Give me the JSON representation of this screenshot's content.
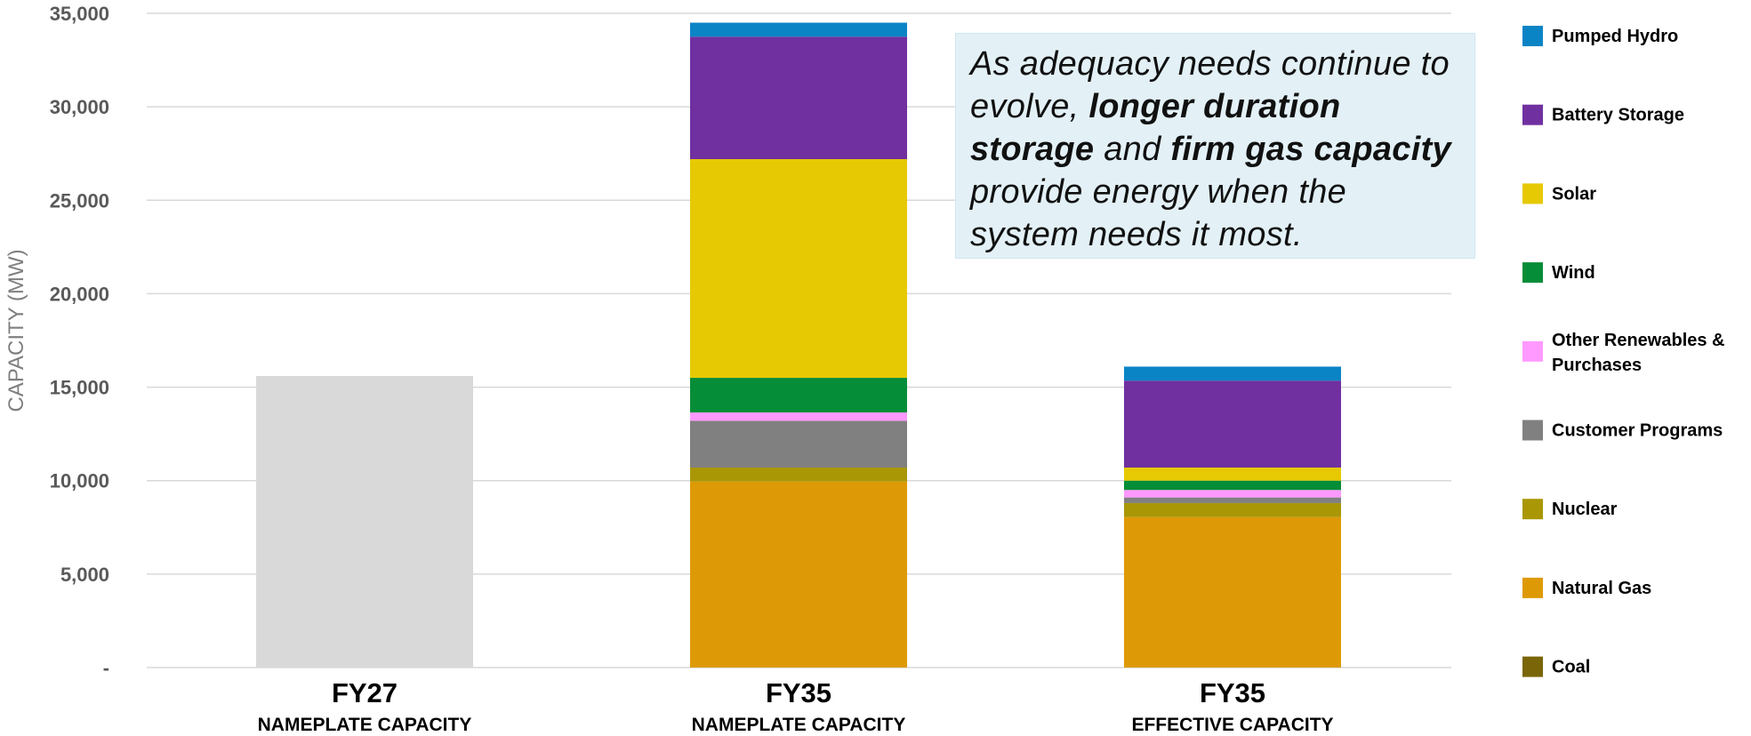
{
  "chart_data": {
    "type": "bar",
    "stacked": true,
    "ylabel": "CAPACITY (MW)",
    "ylim": [
      0,
      35000
    ],
    "yticks": [
      {
        "value": 0,
        "label": "-"
      },
      {
        "value": 5000,
        "label": "5,000"
      },
      {
        "value": 10000,
        "label": "10,000"
      },
      {
        "value": 15000,
        "label": "15,000"
      },
      {
        "value": 20000,
        "label": "20,000"
      },
      {
        "value": 25000,
        "label": "25,000"
      },
      {
        "value": 30000,
        "label": "30,000"
      },
      {
        "value": 35000,
        "label": "35,000"
      }
    ],
    "grid": true,
    "legend_position": "right",
    "categories": [
      {
        "label": "FY27",
        "sublabel": "NAMEPLATE CAPACITY"
      },
      {
        "label": "FY35",
        "sublabel": "NAMEPLATE CAPACITY"
      },
      {
        "label": "FY35",
        "sublabel": "EFFECTIVE CAPACITY"
      }
    ],
    "fy27_total": {
      "value": 15600,
      "color": "#d9d9d9"
    },
    "series": [
      {
        "name": "Coal",
        "color": "#7a6608",
        "values": [
          0,
          0,
          0
        ]
      },
      {
        "name": "Natural Gas",
        "color": "#de9a06",
        "values": [
          0,
          9950,
          8050
        ]
      },
      {
        "name": "Nuclear",
        "color": "#a99706",
        "values": [
          0,
          750,
          750
        ]
      },
      {
        "name": "Customer Programs",
        "color": "#808080",
        "values": [
          0,
          2500,
          300
        ]
      },
      {
        "name": "Other Renewables & Purchases",
        "color": "#ff99ff",
        "values": [
          0,
          450,
          400
        ]
      },
      {
        "name": "Wind",
        "color": "#068d38",
        "values": [
          0,
          1850,
          500
        ]
      },
      {
        "name": "Solar",
        "color": "#e6c902",
        "values": [
          0,
          11700,
          700
        ]
      },
      {
        "name": "Battery Storage",
        "color": "#7030a0",
        "values": [
          0,
          6550,
          4650
        ]
      },
      {
        "name": "Pumped Hydro",
        "color": "#0b84c6",
        "values": [
          0,
          750,
          750
        ]
      }
    ],
    "legend_order": [
      "Pumped Hydro",
      "Battery Storage",
      "Solar",
      "Wind",
      "Other Renewables & Purchases",
      "Customer Programs",
      "Nuclear",
      "Natural Gas",
      "Coal"
    ],
    "annotation": {
      "segments": [
        {
          "text": "As adequacy needs continue to evolve, ",
          "bold": false
        },
        {
          "text": "longer duration storage",
          "bold": true
        },
        {
          "text": " and ",
          "bold": false
        },
        {
          "text": "firm gas capacity",
          "bold": true
        },
        {
          "text": " provide energy when the system needs it most.",
          "bold": false
        }
      ]
    }
  }
}
